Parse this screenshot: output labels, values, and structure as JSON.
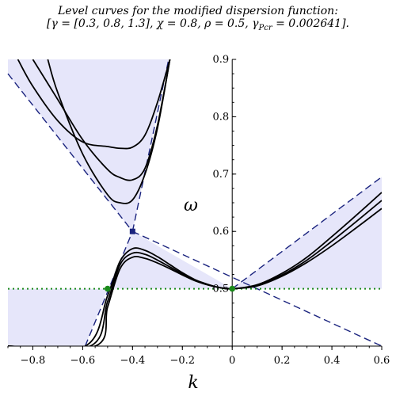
{
  "title_line1": "Level curves for the modified dispersion function:",
  "title_line2": "[γ = [0.3, 0.8, 1.3], χ = 0.8, ρ = 0.5, γ",
  "title_sub": "Pcr",
  "title_line2_end": " = 0.002641].",
  "chart_data": {
    "type": "line",
    "title": "Level curves for the modified dispersion function: [γ = [0.3, 0.8, 1.3], χ = 0.8, ρ = 0.5, γPcr = 0.002641].",
    "xlabel": "k",
    "ylabel": "ω",
    "xlim": [
      -0.9,
      0.6
    ],
    "ylim": [
      0.4,
      0.9
    ],
    "xticks": [
      -0.8,
      -0.6,
      -0.4,
      -0.2,
      0,
      0.2,
      0.4,
      0.6
    ],
    "yticks": [
      0.5,
      0.6,
      0.7,
      0.8,
      0.9
    ],
    "xtick_labels": [
      "−0.8",
      "−0.6",
      "−0.4",
      "−0.2",
      "0",
      "0.2",
      "0.4",
      "0.6"
    ],
    "ytick_labels": [
      "0.5",
      "0.6",
      "0.7",
      "0.8",
      "0.9"
    ],
    "horizontal_line": {
      "y": 0.5,
      "style": "dotted",
      "color": "#1a8a1a"
    },
    "special_points": [
      {
        "x": -0.5,
        "y": 0.5,
        "marker": "circle",
        "color": "#1a8a1a"
      },
      {
        "x": 0,
        "y": 0.5,
        "marker": "circle",
        "color": "#1a8a1a"
      },
      {
        "x": -0.4,
        "y": 0.6,
        "marker": "square",
        "color": "#1a237e"
      }
    ],
    "asymptotes": [
      {
        "x": [
          -0.9,
          -0.4
        ],
        "y": [
          0.875,
          0.6
        ]
      },
      {
        "x": [
          -0.4,
          -0.255
        ],
        "y": [
          0.6,
          0.9
        ]
      },
      {
        "x": [
          -0.59,
          -0.4
        ],
        "y": [
          0.4,
          0.6
        ]
      },
      {
        "x": [
          -0.4,
          0.6
        ],
        "y": [
          0.6,
          0.4
        ]
      },
      {
        "x": [
          0,
          0.6
        ],
        "y": [
          0.5,
          0.695
        ]
      }
    ],
    "series": [
      {
        "x": [
          -0.9,
          -0.55,
          -0.5,
          -0.45,
          -0.4,
          -0.35,
          -0.3,
          -0.25,
          -0.2,
          -0.15,
          -0.1,
          -0.05,
          0,
          0.1,
          0.2,
          0.3,
          0.4,
          0.5,
          0.6
        ],
        "y": [
          0.4,
          0.4,
          0.468,
          0.535,
          0.555,
          0.553,
          0.545,
          0.535,
          0.524,
          0.514,
          0.507,
          0.502,
          0.5,
          0.505,
          0.522,
          0.546,
          0.575,
          0.607,
          0.64
        ]
      },
      {
        "x": [
          -0.9,
          -0.57,
          -0.5,
          -0.45,
          -0.4,
          -0.35,
          -0.3,
          -0.25,
          -0.2,
          -0.15,
          -0.1,
          -0.05,
          0,
          0.1,
          0.2,
          0.3,
          0.4,
          0.5,
          0.6
        ],
        "y": [
          0.4,
          0.4,
          0.478,
          0.542,
          0.562,
          0.56,
          0.55,
          0.538,
          0.526,
          0.515,
          0.507,
          0.502,
          0.5,
          0.506,
          0.524,
          0.55,
          0.583,
          0.618,
          0.654
        ]
      },
      {
        "x": [
          -0.9,
          -0.59,
          -0.5,
          -0.45,
          -0.4,
          -0.35,
          -0.3,
          -0.25,
          -0.2,
          -0.15,
          -0.1,
          -0.05,
          0,
          0.1,
          0.2,
          0.3,
          0.4,
          0.5,
          0.6
        ],
        "y": [
          0.4,
          0.4,
          0.488,
          0.548,
          0.57,
          0.567,
          0.556,
          0.542,
          0.528,
          0.516,
          0.508,
          0.502,
          0.5,
          0.507,
          0.527,
          0.555,
          0.591,
          0.629,
          0.668
        ]
      },
      {
        "x": [
          -0.74,
          -0.7,
          -0.6,
          -0.5,
          -0.45,
          -0.4,
          -0.35,
          -0.3,
          -0.25
        ],
        "y": [
          0.9,
          0.842,
          0.735,
          0.664,
          0.65,
          0.655,
          0.7,
          0.78,
          0.9
        ]
      },
      {
        "x": [
          -0.8,
          -0.7,
          -0.6,
          -0.5,
          -0.45,
          -0.4,
          -0.35,
          -0.3,
          -0.25
        ],
        "y": [
          0.9,
          0.83,
          0.76,
          0.708,
          0.694,
          0.69,
          0.71,
          0.785,
          0.9
        ]
      },
      {
        "x": [
          -0.86,
          -0.8,
          -0.7,
          -0.6,
          -0.5,
          -0.45,
          -0.4,
          -0.35,
          -0.3,
          -0.25
        ],
        "y": [
          0.9,
          0.853,
          0.793,
          0.756,
          0.748,
          0.745,
          0.747,
          0.768,
          0.825,
          0.9
        ]
      }
    ],
    "shaded_regions_color": "#e6e6fa",
    "curve_color": "#000000",
    "asymptote_color": "#1a237e",
    "grid": false
  }
}
